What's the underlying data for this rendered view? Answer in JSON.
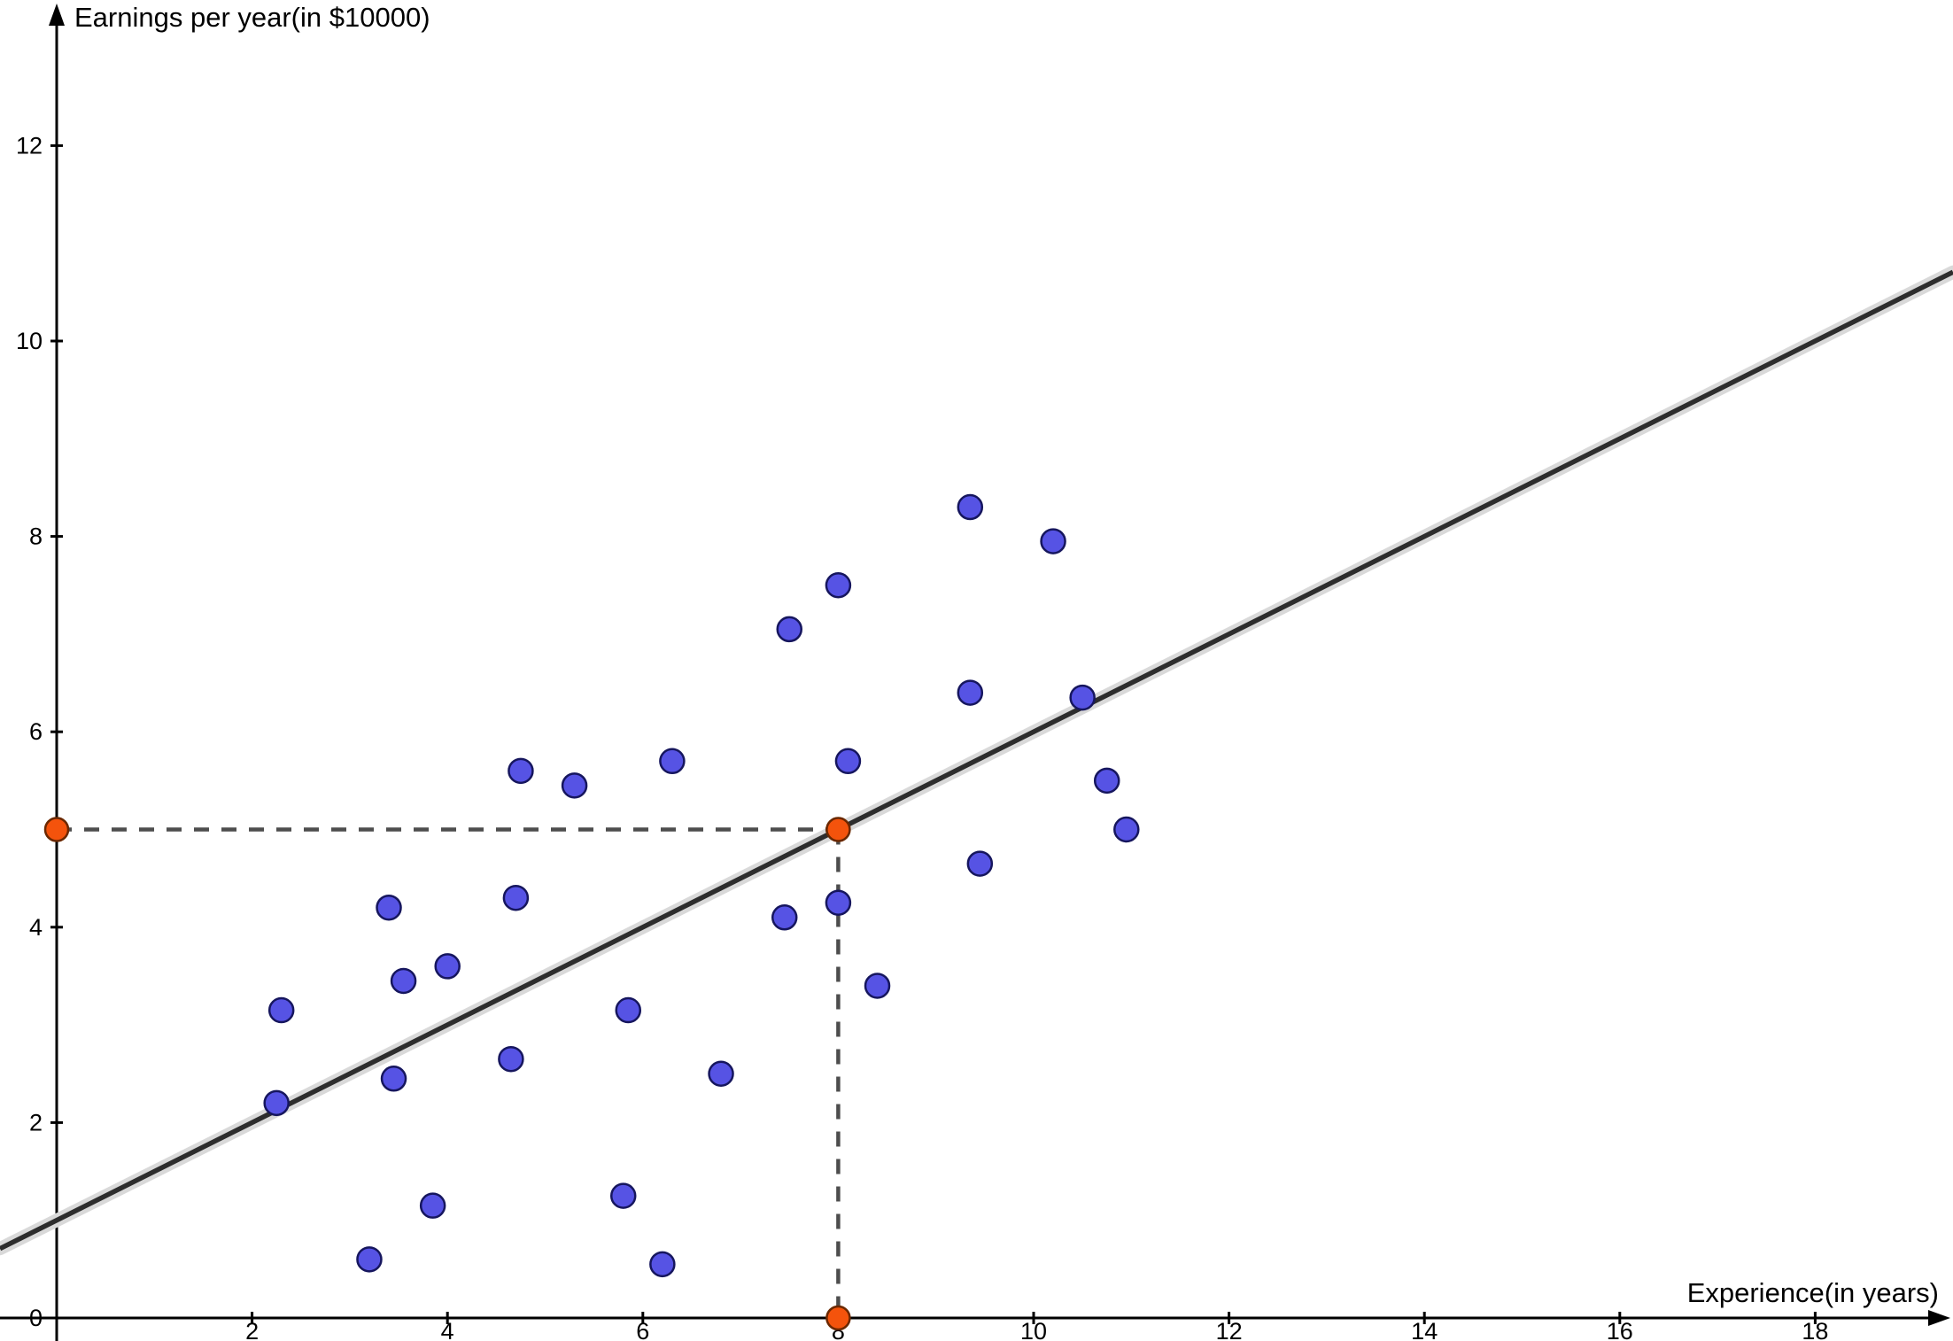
{
  "chart_data": {
    "type": "scatter",
    "title": "",
    "xlabel": "Experience(in years)",
    "ylabel": "Earnings per year(in $10000)",
    "xlim": [
      -0.58,
      19.41
    ],
    "ylim": [
      -0.24,
      13.49
    ],
    "grid": false,
    "x_ticks": [
      2,
      4,
      6,
      8,
      10,
      12,
      14,
      16,
      18
    ],
    "y_ticks": [
      0,
      2,
      4,
      6,
      8,
      10,
      12
    ],
    "points": [
      [
        2.25,
        2.2
      ],
      [
        2.3,
        3.15
      ],
      [
        3.2,
        0.6
      ],
      [
        3.4,
        4.2
      ],
      [
        3.45,
        2.45
      ],
      [
        3.55,
        3.45
      ],
      [
        3.85,
        1.15
      ],
      [
        4.0,
        3.6
      ],
      [
        4.65,
        2.65
      ],
      [
        4.7,
        4.3
      ],
      [
        4.75,
        5.6
      ],
      [
        5.3,
        5.45
      ],
      [
        5.8,
        1.25
      ],
      [
        5.85,
        3.15
      ],
      [
        6.2,
        0.55
      ],
      [
        6.3,
        5.7
      ],
      [
        6.8,
        2.5
      ],
      [
        7.45,
        4.1
      ],
      [
        7.5,
        7.05
      ],
      [
        8.0,
        7.5
      ],
      [
        8.0,
        4.25
      ],
      [
        8.1,
        5.7
      ],
      [
        8.4,
        3.4
      ],
      [
        9.35,
        8.3
      ],
      [
        9.35,
        6.4
      ],
      [
        9.45,
        4.65
      ],
      [
        10.2,
        7.95
      ],
      [
        10.5,
        6.35
      ],
      [
        10.75,
        5.5
      ],
      [
        10.95,
        5.0
      ]
    ],
    "trend_line": {
      "slope": 0.5,
      "intercept": 1.0
    },
    "highlight_points": [
      [
        0,
        5
      ],
      [
        8,
        5
      ],
      [
        8,
        0
      ]
    ],
    "dashed_guides": [
      [
        [
          0,
          5
        ],
        [
          8,
          5
        ]
      ],
      [
        [
          8,
          5
        ],
        [
          8,
          0
        ]
      ]
    ],
    "colors": {
      "point": "#5653e4",
      "point_stroke": "#16165e",
      "highlight": "#f4530c",
      "highlight_stroke": "#6b2800",
      "line": "#2d2d2d",
      "line_halo": "#d9d9d9",
      "dashed": "#4d4d4d",
      "axis": "#000000",
      "tick_text": "#000000"
    }
  }
}
